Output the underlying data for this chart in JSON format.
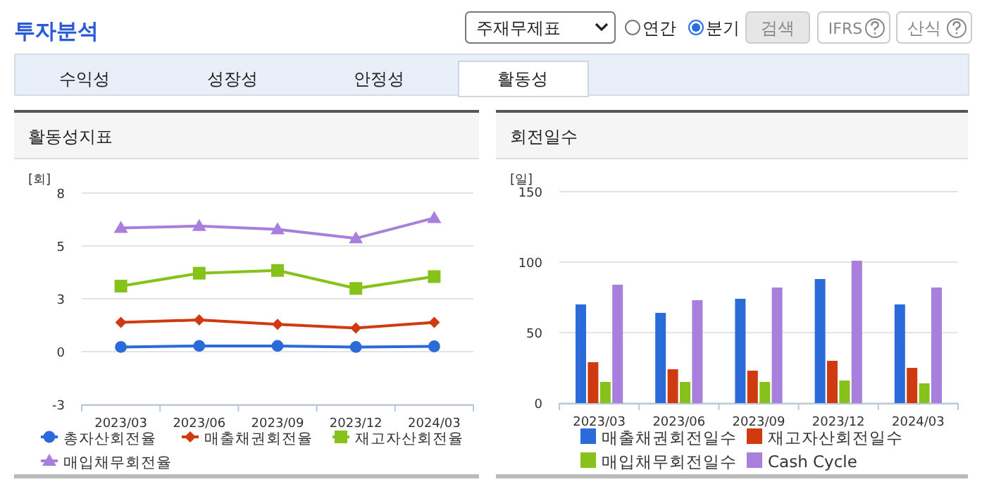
{
  "chart_data": [
    {
      "type": "other",
      "title": "투자분석",
      "annotations": [
        "주재무제표",
        "연간",
        "분기",
        "검색",
        "IFRS",
        "산식",
        "수익성",
        "성장성",
        "안정성",
        "활동성"
      ]
    },
    {
      "type": "line",
      "title": "활동성지표",
      "ylabel": "[회]",
      "categories": [
        "2023/03",
        "2023/06",
        "2023/09",
        "2023/12",
        "2024/03"
      ],
      "ylim": [
        -2.5,
        7.5
      ],
      "yticks": [
        {
          "value": -2.5,
          "label": "-3"
        },
        0,
        {
          "value": 2.5,
          "label": "3"
        },
        5,
        {
          "value": 7.5,
          "label": "8"
        }
      ],
      "grid": "y",
      "legend": "bottom",
      "series": [
        {
          "name": "총자산회전율",
          "color": "#2b6bd9",
          "marker": "circle",
          "values": [
            0.22,
            0.27,
            0.27,
            0.22,
            0.25
          ]
        },
        {
          "name": "매출채권회전율",
          "color": "#d03a10",
          "marker": "diamond",
          "values": [
            1.38,
            1.5,
            1.29,
            1.12,
            1.38
          ]
        },
        {
          "name": "재고자산회전율",
          "color": "#86c21a",
          "marker": "square",
          "values": [
            3.1,
            3.71,
            3.84,
            2.99,
            3.55
          ]
        },
        {
          "name": "매입채무회전율",
          "color": "#a87fdc",
          "marker": "triangle",
          "values": [
            5.85,
            5.94,
            5.78,
            5.36,
            6.32
          ]
        }
      ]
    },
    {
      "type": "bar",
      "title": "회전일수",
      "ylabel": "[일]",
      "categories": [
        "2023/03",
        "2023/06",
        "2023/09",
        "2023/12",
        "2024/03"
      ],
      "ylim": [
        0,
        150
      ],
      "yticks": [
        0,
        50,
        100,
        150
      ],
      "grid": "y",
      "legend": "bottom",
      "series": [
        {
          "name": "매출채권회전일수",
          "color": "#2b6bd9",
          "values": [
            70,
            64,
            74,
            88,
            70
          ]
        },
        {
          "name": "재고자산회전일수",
          "color": "#d03a10",
          "values": [
            29,
            24,
            23,
            30,
            25
          ]
        },
        {
          "name": "매입채무회전일수",
          "color": "#86c21a",
          "values": [
            15,
            15,
            15,
            16,
            14
          ]
        },
        {
          "name": "Cash Cycle",
          "color": "#a87fdc",
          "values": [
            84,
            73,
            82,
            101,
            82
          ]
        }
      ]
    }
  ]
}
